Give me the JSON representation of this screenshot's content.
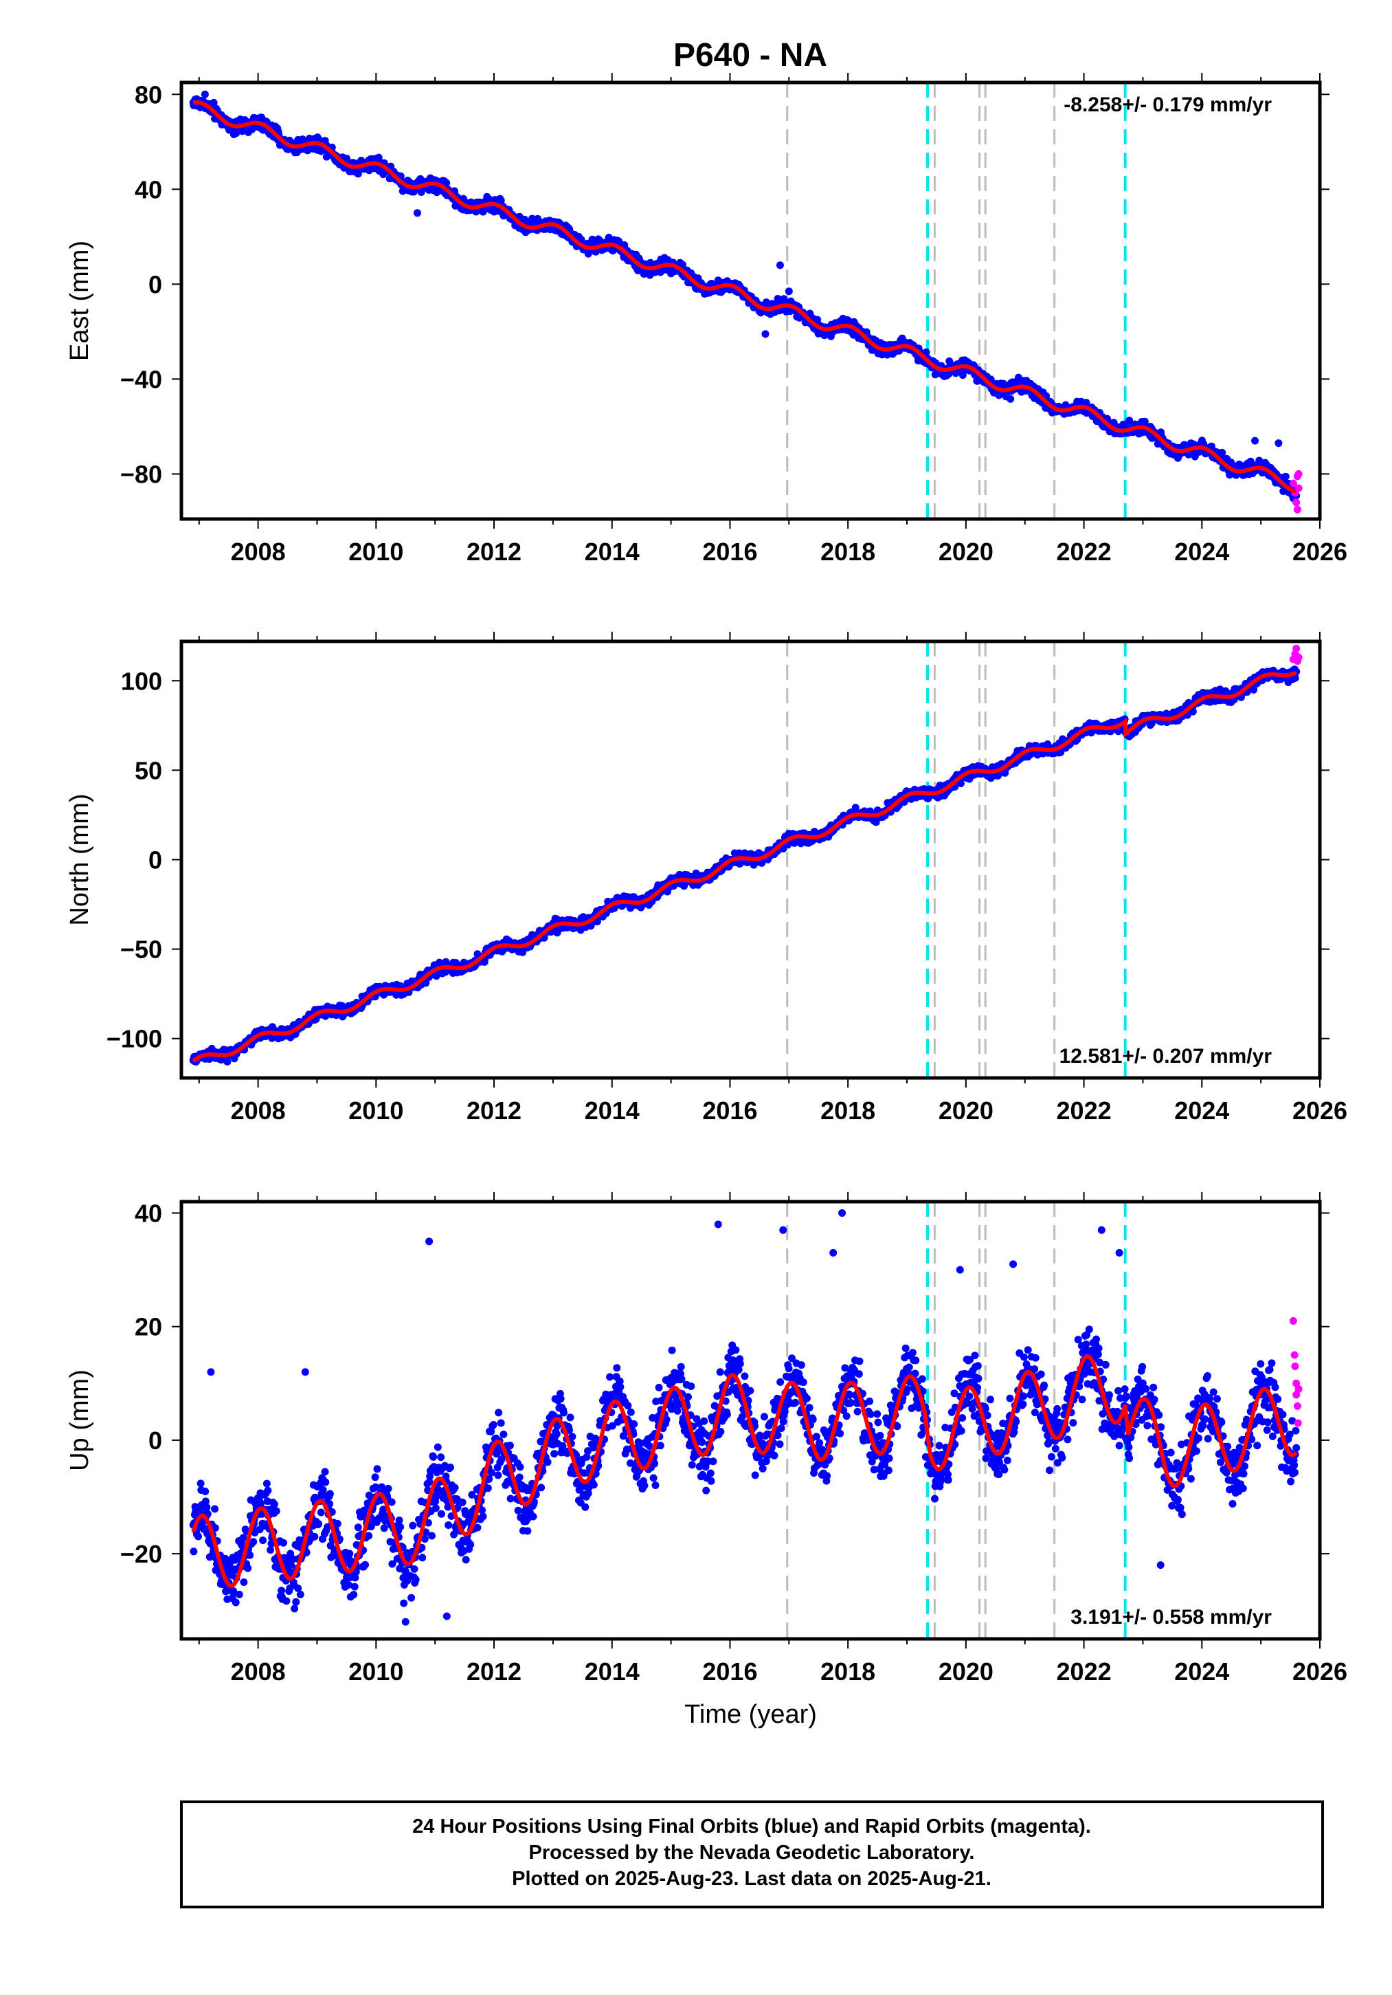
{
  "title": "P640 - NA",
  "colors": {
    "final_orbits": "#0000ff",
    "rapid_orbits": "#ff00ff",
    "model": "#ff0000",
    "event_gray": "#bdbdbd",
    "event_cyan": "#00e5ee"
  },
  "footer": {
    "line1": "24 Hour Positions Using Final Orbits (blue) and Rapid Orbits (magenta).",
    "line2": "Processed by the Nevada Geodetic Laboratory.",
    "line3": "Plotted on 2025-Aug-23. Last data on 2025-Aug-21."
  },
  "chart_data": [
    {
      "type": "scatter",
      "ylabel": "East (mm)",
      "xlabel": "",
      "rate_label": "-8.258+/- 0.179 mm/yr",
      "rate_position": "top-right",
      "xlim": [
        2006.7,
        2026.0
      ],
      "ylim": [
        -99,
        85
      ],
      "xticks": [
        2008,
        2010,
        2012,
        2014,
        2016,
        2018,
        2020,
        2022,
        2024,
        2026
      ],
      "yticks": [
        80,
        40,
        0,
        -40,
        -80
      ],
      "ytick_labels": [
        "80",
        "40",
        "0",
        "−40",
        "−80"
      ],
      "trend": {
        "start": [
          2006.9,
          75
        ],
        "end": [
          2025.6,
          -85
        ],
        "rate_mm_per_yr": -8.258
      },
      "seasonal_amplitude": 2.5,
      "noise": 2.0,
      "steps": [],
      "event_lines": {
        "gray": [
          2016.97,
          2019.47,
          2020.23,
          2020.33,
          2021.5
        ],
        "cyan": [
          2019.35,
          2022.7
        ]
      },
      "rapid_orbit_points": [
        [
          2025.55,
          -84
        ],
        [
          2025.58,
          -88
        ],
        [
          2025.6,
          -92
        ],
        [
          2025.62,
          -95
        ],
        [
          2025.62,
          -81
        ],
        [
          2025.64,
          -80
        ],
        [
          2025.64,
          -86
        ]
      ],
      "outliers": [
        [
          2007.1,
          80
        ],
        [
          2010.7,
          30
        ],
        [
          2016.85,
          8
        ],
        [
          2017.0,
          -3
        ],
        [
          2016.6,
          -21
        ],
        [
          2024.9,
          -66
        ],
        [
          2025.3,
          -67
        ]
      ],
      "grid": false
    },
    {
      "type": "scatter",
      "ylabel": "North (mm)",
      "xlabel": "",
      "rate_label": "12.581+/- 0.207 mm/yr",
      "rate_position": "bottom-right",
      "xlim": [
        2006.7,
        2026.0
      ],
      "ylim": [
        -122,
        122
      ],
      "xticks": [
        2008,
        2010,
        2012,
        2014,
        2016,
        2018,
        2020,
        2022,
        2024,
        2026
      ],
      "yticks": [
        100,
        50,
        0,
        -50,
        -100
      ],
      "ytick_labels": [
        "100",
        "50",
        "0",
        "−50",
        "−100"
      ],
      "trend": {
        "start": [
          2006.9,
          -114
        ],
        "end": [
          2025.6,
          114
        ],
        "rate_mm_per_yr": 12.581
      },
      "seasonal_amplitude": 2.5,
      "noise": 2.2,
      "steps": [
        [
          2022.7,
          -7
        ]
      ],
      "event_lines": {
        "gray": [
          2016.97,
          2019.47,
          2020.23,
          2020.33,
          2021.5
        ],
        "cyan": [
          2019.35,
          2022.7
        ]
      },
      "rapid_orbit_points": [
        [
          2025.55,
          112
        ],
        [
          2025.58,
          115
        ],
        [
          2025.6,
          118
        ],
        [
          2025.62,
          111
        ],
        [
          2025.64,
          113
        ]
      ],
      "outliers": [],
      "grid": false
    },
    {
      "type": "scatter",
      "ylabel": "Up (mm)",
      "xlabel": "Time (year)",
      "rate_label": "3.191+/- 0.558 mm/yr",
      "rate_position": "bottom-right",
      "xlim": [
        2006.7,
        2026.0
      ],
      "ylim": [
        -35,
        42
      ],
      "xticks": [
        2008,
        2010,
        2012,
        2014,
        2016,
        2018,
        2020,
        2022,
        2024,
        2026
      ],
      "yticks": [
        40,
        20,
        0,
        -20
      ],
      "ytick_labels": [
        "40",
        "20",
        "0",
        "−20"
      ],
      "model_knots": [
        [
          2006.9,
          -20
        ],
        [
          2010.8,
          -15
        ],
        [
          2012.0,
          -7
        ],
        [
          2013.5,
          -1
        ],
        [
          2016.0,
          5
        ],
        [
          2017.5,
          3
        ],
        [
          2019.3,
          5
        ],
        [
          2019.4,
          1
        ],
        [
          2022.7,
          10
        ],
        [
          2022.75,
          3
        ],
        [
          2023.4,
          -2
        ],
        [
          2025.6,
          4
        ]
      ],
      "seasonal_amplitude": 6.5,
      "noise": 4.0,
      "steps": [],
      "event_lines": {
        "gray": [
          2016.97,
          2019.47,
          2020.23,
          2020.33,
          2021.5
        ],
        "cyan": [
          2019.35,
          2022.7
        ]
      },
      "rapid_orbit_points": [
        [
          2025.55,
          21
        ],
        [
          2025.57,
          15
        ],
        [
          2025.58,
          13
        ],
        [
          2025.6,
          10
        ],
        [
          2025.6,
          8
        ],
        [
          2025.62,
          6
        ],
        [
          2025.63,
          3
        ],
        [
          2025.64,
          9
        ]
      ],
      "outliers": [
        [
          2010.9,
          35
        ],
        [
          2015.8,
          38
        ],
        [
          2016.9,
          37
        ],
        [
          2017.9,
          40
        ],
        [
          2017.75,
          33
        ],
        [
          2019.9,
          30
        ],
        [
          2020.8,
          31
        ],
        [
          2022.3,
          37
        ],
        [
          2022.6,
          33
        ],
        [
          2007.2,
          12
        ],
        [
          2008.8,
          12
        ],
        [
          2010.5,
          -32
        ],
        [
          2011.2,
          -31
        ],
        [
          2023.3,
          -22
        ]
      ],
      "grid": false
    }
  ]
}
